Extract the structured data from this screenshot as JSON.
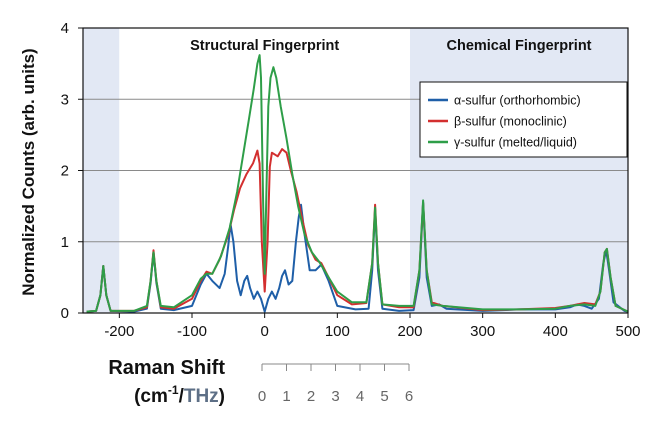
{
  "chart_data": {
    "type": "line",
    "ylabel": "Normalized Counts (arb. units)",
    "xlabel_main": "Raman Shift",
    "xlabel_units_prefix": "(cm",
    "xlabel_units_sup": "-1",
    "xlabel_units_sep": "/",
    "xlabel_units_thz": "THz",
    "xlabel_units_suffix": ")",
    "xlim": [
      -250,
      500
    ],
    "ylim": [
      0,
      4
    ],
    "x_ticks": [
      "-200",
      "-100",
      "0",
      "100",
      "200",
      "300",
      "400",
      "500"
    ],
    "y_ticks": [
      "0",
      "1",
      "2",
      "3",
      "4"
    ],
    "thz_ticks": [
      "0",
      "1",
      "2",
      "3",
      "4",
      "5",
      "6"
    ],
    "grid": "horizontal",
    "legend_position": "upper-right",
    "regions": [
      {
        "label": "",
        "x_range": [
          -250,
          -200
        ],
        "color": "#e2e8f4"
      },
      {
        "label": "Structural Fingerprint",
        "x_range": [
          -200,
          200
        ],
        "color": "#ffffff"
      },
      {
        "label": "Chemical Fingerprint",
        "x_range": [
          200,
          500
        ],
        "color": "#e2e8f4"
      }
    ],
    "series": [
      {
        "name": "α-sulfur (orthorhombic)",
        "color": "#1f5fa8",
        "points": [
          [
            -245,
            0.02
          ],
          [
            -232,
            0.03
          ],
          [
            -226,
            0.25
          ],
          [
            -222,
            0.66
          ],
          [
            -218,
            0.25
          ],
          [
            -212,
            0.03
          ],
          [
            -180,
            0.02
          ],
          [
            -162,
            0.06
          ],
          [
            -157,
            0.42
          ],
          [
            -153,
            0.85
          ],
          [
            -149,
            0.42
          ],
          [
            -143,
            0.06
          ],
          [
            -125,
            0.04
          ],
          [
            -100,
            0.1
          ],
          [
            -88,
            0.4
          ],
          [
            -80,
            0.55
          ],
          [
            -72,
            0.45
          ],
          [
            -62,
            0.35
          ],
          [
            -55,
            0.55
          ],
          [
            -50,
            0.95
          ],
          [
            -47,
            1.25
          ],
          [
            -43,
            1.0
          ],
          [
            -38,
            0.45
          ],
          [
            -33,
            0.25
          ],
          [
            -28,
            0.45
          ],
          [
            -24,
            0.52
          ],
          [
            -20,
            0.35
          ],
          [
            -15,
            0.2
          ],
          [
            -10,
            0.3
          ],
          [
            -5,
            0.2
          ],
          [
            0,
            0.02
          ],
          [
            5,
            0.2
          ],
          [
            10,
            0.3
          ],
          [
            15,
            0.2
          ],
          [
            20,
            0.35
          ],
          [
            24,
            0.52
          ],
          [
            28,
            0.6
          ],
          [
            33,
            0.4
          ],
          [
            38,
            0.45
          ],
          [
            43,
            1.0
          ],
          [
            47,
            1.35
          ],
          [
            50,
            1.52
          ],
          [
            55,
            1.1
          ],
          [
            62,
            0.6
          ],
          [
            70,
            0.6
          ],
          [
            78,
            0.68
          ],
          [
            88,
            0.45
          ],
          [
            100,
            0.1
          ],
          [
            125,
            0.05
          ],
          [
            143,
            0.06
          ],
          [
            148,
            0.6
          ],
          [
            152,
            1.45
          ],
          [
            156,
            0.6
          ],
          [
            162,
            0.06
          ],
          [
            185,
            0.03
          ],
          [
            205,
            0.04
          ],
          [
            213,
            0.5
          ],
          [
            218,
            1.55
          ],
          [
            223,
            0.5
          ],
          [
            230,
            0.1
          ],
          [
            240,
            0.12
          ],
          [
            250,
            0.06
          ],
          [
            300,
            0.03
          ],
          [
            350,
            0.05
          ],
          [
            400,
            0.05
          ],
          [
            420,
            0.08
          ],
          [
            430,
            0.12
          ],
          [
            440,
            0.1
          ],
          [
            450,
            0.06
          ],
          [
            460,
            0.2
          ],
          [
            466,
            0.7
          ],
          [
            470,
            0.88
          ],
          [
            474,
            0.6
          ],
          [
            480,
            0.15
          ],
          [
            495,
            0.03
          ],
          [
            500,
            0.02
          ]
        ]
      },
      {
        "name": "β-sulfur (monoclinic)",
        "color": "#d32f2f",
        "points": [
          [
            -245,
            0.02
          ],
          [
            -232,
            0.03
          ],
          [
            -226,
            0.25
          ],
          [
            -222,
            0.66
          ],
          [
            -218,
            0.25
          ],
          [
            -212,
            0.03
          ],
          [
            -180,
            0.03
          ],
          [
            -162,
            0.08
          ],
          [
            -157,
            0.45
          ],
          [
            -153,
            0.88
          ],
          [
            -149,
            0.45
          ],
          [
            -143,
            0.08
          ],
          [
            -125,
            0.06
          ],
          [
            -100,
            0.2
          ],
          [
            -88,
            0.45
          ],
          [
            -80,
            0.58
          ],
          [
            -72,
            0.55
          ],
          [
            -62,
            0.75
          ],
          [
            -50,
            1.1
          ],
          [
            -42,
            1.45
          ],
          [
            -34,
            1.75
          ],
          [
            -25,
            1.95
          ],
          [
            -16,
            2.1
          ],
          [
            -10,
            2.28
          ],
          [
            -7,
            2.1
          ],
          [
            -4,
            1.0
          ],
          [
            0,
            0.3
          ],
          [
            4,
            1.0
          ],
          [
            7,
            2.05
          ],
          [
            10,
            2.25
          ],
          [
            18,
            2.2
          ],
          [
            24,
            2.3
          ],
          [
            30,
            2.25
          ],
          [
            36,
            2.0
          ],
          [
            44,
            1.7
          ],
          [
            52,
            1.3
          ],
          [
            60,
            0.95
          ],
          [
            70,
            0.75
          ],
          [
            78,
            0.7
          ],
          [
            88,
            0.5
          ],
          [
            100,
            0.25
          ],
          [
            120,
            0.12
          ],
          [
            140,
            0.14
          ],
          [
            148,
            0.7
          ],
          [
            152,
            1.52
          ],
          [
            156,
            0.7
          ],
          [
            162,
            0.12
          ],
          [
            185,
            0.08
          ],
          [
            205,
            0.08
          ],
          [
            213,
            0.6
          ],
          [
            218,
            1.55
          ],
          [
            223,
            0.6
          ],
          [
            230,
            0.15
          ],
          [
            245,
            0.1
          ],
          [
            300,
            0.04
          ],
          [
            350,
            0.05
          ],
          [
            400,
            0.07
          ],
          [
            420,
            0.1
          ],
          [
            440,
            0.14
          ],
          [
            455,
            0.12
          ],
          [
            462,
            0.3
          ],
          [
            468,
            0.85
          ],
          [
            471,
            0.9
          ],
          [
            476,
            0.5
          ],
          [
            483,
            0.1
          ],
          [
            500,
            0.02
          ]
        ]
      },
      {
        "name": "γ-sulfur (melted/liquid)",
        "color": "#2e9e48",
        "points": [
          [
            -245,
            0.02
          ],
          [
            -232,
            0.03
          ],
          [
            -226,
            0.25
          ],
          [
            -222,
            0.66
          ],
          [
            -218,
            0.25
          ],
          [
            -212,
            0.03
          ],
          [
            -180,
            0.03
          ],
          [
            -162,
            0.1
          ],
          [
            -157,
            0.45
          ],
          [
            -153,
            0.85
          ],
          [
            -149,
            0.45
          ],
          [
            -143,
            0.1
          ],
          [
            -125,
            0.08
          ],
          [
            -100,
            0.25
          ],
          [
            -88,
            0.48
          ],
          [
            -80,
            0.55
          ],
          [
            -72,
            0.55
          ],
          [
            -60,
            0.8
          ],
          [
            -48,
            1.2
          ],
          [
            -38,
            1.7
          ],
          [
            -30,
            2.2
          ],
          [
            -22,
            2.7
          ],
          [
            -15,
            3.15
          ],
          [
            -10,
            3.5
          ],
          [
            -7,
            3.62
          ],
          [
            -5,
            3.3
          ],
          [
            -2,
            1.5
          ],
          [
            0,
            0.55
          ],
          [
            2,
            1.5
          ],
          [
            5,
            2.9
          ],
          [
            8,
            3.3
          ],
          [
            12,
            3.45
          ],
          [
            16,
            3.3
          ],
          [
            22,
            2.9
          ],
          [
            30,
            2.45
          ],
          [
            38,
            1.95
          ],
          [
            46,
            1.5
          ],
          [
            55,
            1.1
          ],
          [
            65,
            0.85
          ],
          [
            75,
            0.72
          ],
          [
            85,
            0.55
          ],
          [
            100,
            0.3
          ],
          [
            120,
            0.15
          ],
          [
            140,
            0.15
          ],
          [
            148,
            0.7
          ],
          [
            152,
            1.48
          ],
          [
            156,
            0.7
          ],
          [
            162,
            0.12
          ],
          [
            185,
            0.1
          ],
          [
            205,
            0.1
          ],
          [
            213,
            0.6
          ],
          [
            218,
            1.58
          ],
          [
            223,
            0.6
          ],
          [
            230,
            0.12
          ],
          [
            245,
            0.1
          ],
          [
            300,
            0.05
          ],
          [
            350,
            0.05
          ],
          [
            400,
            0.06
          ],
          [
            420,
            0.1
          ],
          [
            440,
            0.12
          ],
          [
            455,
            0.1
          ],
          [
            462,
            0.3
          ],
          [
            468,
            0.85
          ],
          [
            471,
            0.9
          ],
          [
            476,
            0.5
          ],
          [
            483,
            0.1
          ],
          [
            500,
            0.02
          ]
        ]
      }
    ]
  }
}
